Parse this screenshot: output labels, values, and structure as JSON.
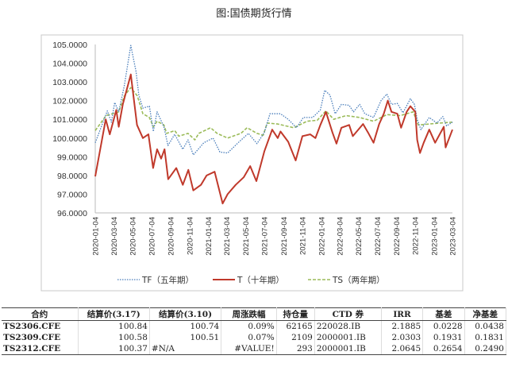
{
  "chart_data": {
    "type": "line",
    "title": "图:国债期货行情",
    "ylim": [
      96,
      105
    ],
    "yticks": [
      "96.0000",
      "97.0000",
      "98.0000",
      "99.0000",
      "100.0000",
      "101.0000",
      "102.0000",
      "103.0000",
      "104.0000",
      "105.0000"
    ],
    "xticks": [
      "2020-01-04",
      "2020-03-04",
      "2020-05-04",
      "2020-07-04",
      "2020-09-04",
      "2020-11-04",
      "2021-01-04",
      "2021-03-04",
      "2021-05-04",
      "2021-07-04",
      "2021-09-04",
      "2021-11-04",
      "2022-01-04",
      "2022-03-04",
      "2022-05-04",
      "2022-07-04",
      "2022-09-04",
      "2022-11-04",
      "2023-01-04",
      "2023-03-04"
    ],
    "legend_position": "bottom",
    "grid": false,
    "series": [
      {
        "name": "TF（五年期）",
        "color": "#4a7ebb",
        "style": "dotted",
        "points": [
          [
            "2020-01-04",
            99.75
          ],
          [
            "2020-02-12",
            101.45
          ],
          [
            "2020-02-25",
            100.85
          ],
          [
            "2020-03-07",
            101.9
          ],
          [
            "2020-03-20",
            101.4
          ],
          [
            "2020-04-07",
            102.8
          ],
          [
            "2020-04-28",
            104.95
          ],
          [
            "2020-05-15",
            103.55
          ],
          [
            "2020-05-24",
            102.3
          ],
          [
            "2020-06-06",
            101.6
          ],
          [
            "2020-06-27",
            101.7
          ],
          [
            "2020-07-10",
            100.35
          ],
          [
            "2020-07-22",
            101.4
          ],
          [
            "2020-08-13",
            100.6
          ],
          [
            "2020-08-26",
            99.6
          ],
          [
            "2020-09-17",
            100.2
          ],
          [
            "2020-10-13",
            99.4
          ],
          [
            "2020-10-30",
            99.9
          ],
          [
            "2020-11-16",
            99.1
          ],
          [
            "2020-12-20",
            99.75
          ],
          [
            "2021-01-19",
            100.0
          ],
          [
            "2021-02-10",
            99.25
          ],
          [
            "2021-03-07",
            99.2
          ],
          [
            "2021-04-10",
            99.75
          ],
          [
            "2021-05-13",
            100.25
          ],
          [
            "2021-06-10",
            99.7
          ],
          [
            "2021-07-04",
            100.3
          ],
          [
            "2021-07-22",
            101.3
          ],
          [
            "2021-08-25",
            101.3
          ],
          [
            "2021-09-19",
            101.0
          ],
          [
            "2021-10-16",
            100.55
          ],
          [
            "2021-11-07",
            101.1
          ],
          [
            "2021-12-07",
            101.1
          ],
          [
            "2022-01-01",
            101.5
          ],
          [
            "2022-01-15",
            102.55
          ],
          [
            "2022-02-01",
            102.3
          ],
          [
            "2022-02-18",
            101.3
          ],
          [
            "2022-03-10",
            101.8
          ],
          [
            "2022-04-04",
            101.75
          ],
          [
            "2022-04-18",
            101.4
          ],
          [
            "2022-05-08",
            101.8
          ],
          [
            "2022-05-25",
            101.3
          ],
          [
            "2022-06-22",
            101.1
          ],
          [
            "2022-07-16",
            102.0
          ],
          [
            "2022-08-04",
            102.35
          ],
          [
            "2022-08-19",
            101.8
          ],
          [
            "2022-09-07",
            101.85
          ],
          [
            "2022-09-25",
            101.35
          ],
          [
            "2022-10-19",
            102.1
          ],
          [
            "2022-11-01",
            101.8
          ],
          [
            "2022-11-10",
            101.0
          ],
          [
            "2022-11-22",
            100.45
          ],
          [
            "2022-12-19",
            101.1
          ],
          [
            "2023-01-13",
            100.8
          ],
          [
            "2023-02-01",
            101.15
          ],
          [
            "2023-02-13",
            100.65
          ],
          [
            "2023-03-04",
            100.85
          ]
        ]
      },
      {
        "name": "T（十年期）",
        "color": "#c0392b",
        "style": "solid",
        "points": [
          [
            "2020-01-04",
            97.95
          ],
          [
            "2020-02-07",
            101.0
          ],
          [
            "2020-02-20",
            100.2
          ],
          [
            "2020-03-12",
            101.5
          ],
          [
            "2020-03-20",
            100.6
          ],
          [
            "2020-04-02",
            101.8
          ],
          [
            "2020-04-28",
            103.4
          ],
          [
            "2020-05-18",
            100.7
          ],
          [
            "2020-06-06",
            100.0
          ],
          [
            "2020-06-24",
            100.2
          ],
          [
            "2020-07-09",
            98.4
          ],
          [
            "2020-07-22",
            99.4
          ],
          [
            "2020-08-04",
            98.9
          ],
          [
            "2020-08-15",
            99.4
          ],
          [
            "2020-08-27",
            97.8
          ],
          [
            "2020-09-22",
            98.4
          ],
          [
            "2020-10-13",
            97.5
          ],
          [
            "2020-10-31",
            98.3
          ],
          [
            "2020-11-16",
            97.2
          ],
          [
            "2020-12-11",
            97.5
          ],
          [
            "2020-12-29",
            98.0
          ],
          [
            "2021-01-24",
            98.2
          ],
          [
            "2021-02-19",
            96.5
          ],
          [
            "2021-03-07",
            97.0
          ],
          [
            "2021-04-02",
            97.5
          ],
          [
            "2021-04-28",
            97.9
          ],
          [
            "2021-05-19",
            98.5
          ],
          [
            "2021-06-08",
            97.7
          ],
          [
            "2021-07-04",
            99.3
          ],
          [
            "2021-07-29",
            100.45
          ],
          [
            "2021-08-16",
            100.0
          ],
          [
            "2021-08-25",
            100.35
          ],
          [
            "2021-09-19",
            99.8
          ],
          [
            "2021-10-13",
            98.8
          ],
          [
            "2021-11-04",
            100.1
          ],
          [
            "2021-11-29",
            100.2
          ],
          [
            "2021-12-16",
            100.0
          ],
          [
            "2022-01-01",
            100.7
          ],
          [
            "2022-01-19",
            101.4
          ],
          [
            "2022-02-09",
            100.3
          ],
          [
            "2022-02-22",
            99.7
          ],
          [
            "2022-03-10",
            100.55
          ],
          [
            "2022-04-04",
            100.7
          ],
          [
            "2022-04-16",
            100.1
          ],
          [
            "2022-05-19",
            100.75
          ],
          [
            "2022-06-04",
            100.3
          ],
          [
            "2022-06-22",
            99.75
          ],
          [
            "2022-07-10",
            100.75
          ],
          [
            "2022-07-25",
            101.3
          ],
          [
            "2022-08-07",
            102.0
          ],
          [
            "2022-08-19",
            101.4
          ],
          [
            "2022-09-07",
            101.3
          ],
          [
            "2022-09-19",
            100.55
          ],
          [
            "2022-10-07",
            101.4
          ],
          [
            "2022-10-19",
            101.7
          ],
          [
            "2022-11-04",
            101.4
          ],
          [
            "2022-11-10",
            99.9
          ],
          [
            "2022-11-19",
            99.2
          ],
          [
            "2022-12-01",
            99.75
          ],
          [
            "2022-12-19",
            100.45
          ],
          [
            "2023-01-07",
            99.75
          ],
          [
            "2023-02-04",
            100.6
          ],
          [
            "2023-02-10",
            99.5
          ],
          [
            "2023-03-04",
            100.45
          ]
        ]
      },
      {
        "name": "TS（两年期）",
        "color": "#9bbb59",
        "style": "dashed",
        "points": [
          [
            "2020-01-04",
            100.4
          ],
          [
            "2020-02-08",
            101.2
          ],
          [
            "2020-03-20",
            101.4
          ],
          [
            "2020-04-07",
            102.25
          ],
          [
            "2020-04-28",
            102.7
          ],
          [
            "2020-05-19",
            102.25
          ],
          [
            "2020-06-06",
            101.3
          ],
          [
            "2020-06-27",
            101.1
          ],
          [
            "2020-07-10",
            100.6
          ],
          [
            "2020-07-22",
            100.9
          ],
          [
            "2020-08-13",
            100.7
          ],
          [
            "2020-08-22",
            100.25
          ],
          [
            "2020-09-17",
            100.4
          ],
          [
            "2020-09-30",
            100.1
          ],
          [
            "2020-10-30",
            100.25
          ],
          [
            "2020-11-21",
            99.9
          ],
          [
            "2020-12-04",
            100.25
          ],
          [
            "2021-01-11",
            100.55
          ],
          [
            "2021-02-01",
            100.25
          ],
          [
            "2021-03-07",
            100.0
          ],
          [
            "2021-04-19",
            100.25
          ],
          [
            "2021-05-09",
            100.55
          ],
          [
            "2021-06-10",
            100.25
          ],
          [
            "2021-06-30",
            100.15
          ],
          [
            "2021-07-13",
            100.8
          ],
          [
            "2021-08-16",
            100.75
          ],
          [
            "2021-10-07",
            100.55
          ],
          [
            "2021-11-19",
            100.9
          ],
          [
            "2021-12-22",
            100.95
          ],
          [
            "2022-01-19",
            101.45
          ],
          [
            "2022-02-13",
            101.0
          ],
          [
            "2022-03-25",
            101.2
          ],
          [
            "2022-05-08",
            101.1
          ],
          [
            "2022-06-22",
            100.9
          ],
          [
            "2022-08-04",
            101.25
          ],
          [
            "2022-09-16",
            101.2
          ],
          [
            "2022-10-28",
            101.4
          ],
          [
            "2022-11-14",
            100.7
          ],
          [
            "2022-12-19",
            100.75
          ],
          [
            "2023-01-22",
            100.8
          ],
          [
            "2023-03-04",
            100.85
          ]
        ]
      }
    ]
  },
  "table": {
    "headers": [
      "合约",
      "结算价(3.17)",
      "结算价(3.10)",
      "周涨跌幅",
      "持仓量",
      "CTD 券",
      "IRR",
      "基差",
      "净基差"
    ],
    "rows": [
      [
        "TS2306.CFE",
        "100.84",
        "100.74",
        "0.09%",
        "62165",
        "220028.IB",
        "2.1885",
        "0.0228",
        "0.0438"
      ],
      [
        "TS2309.CFE",
        "100.58",
        "100.51",
        "0.07%",
        "2109",
        "2000001.IB",
        "2.0303",
        "0.1931",
        "0.1831"
      ],
      [
        "TS2312.CFE",
        "100.37",
        "#N/A",
        "#VALUE!",
        "293",
        "2000001.IB",
        "2.0645",
        "0.2654",
        "0.2490"
      ]
    ]
  }
}
